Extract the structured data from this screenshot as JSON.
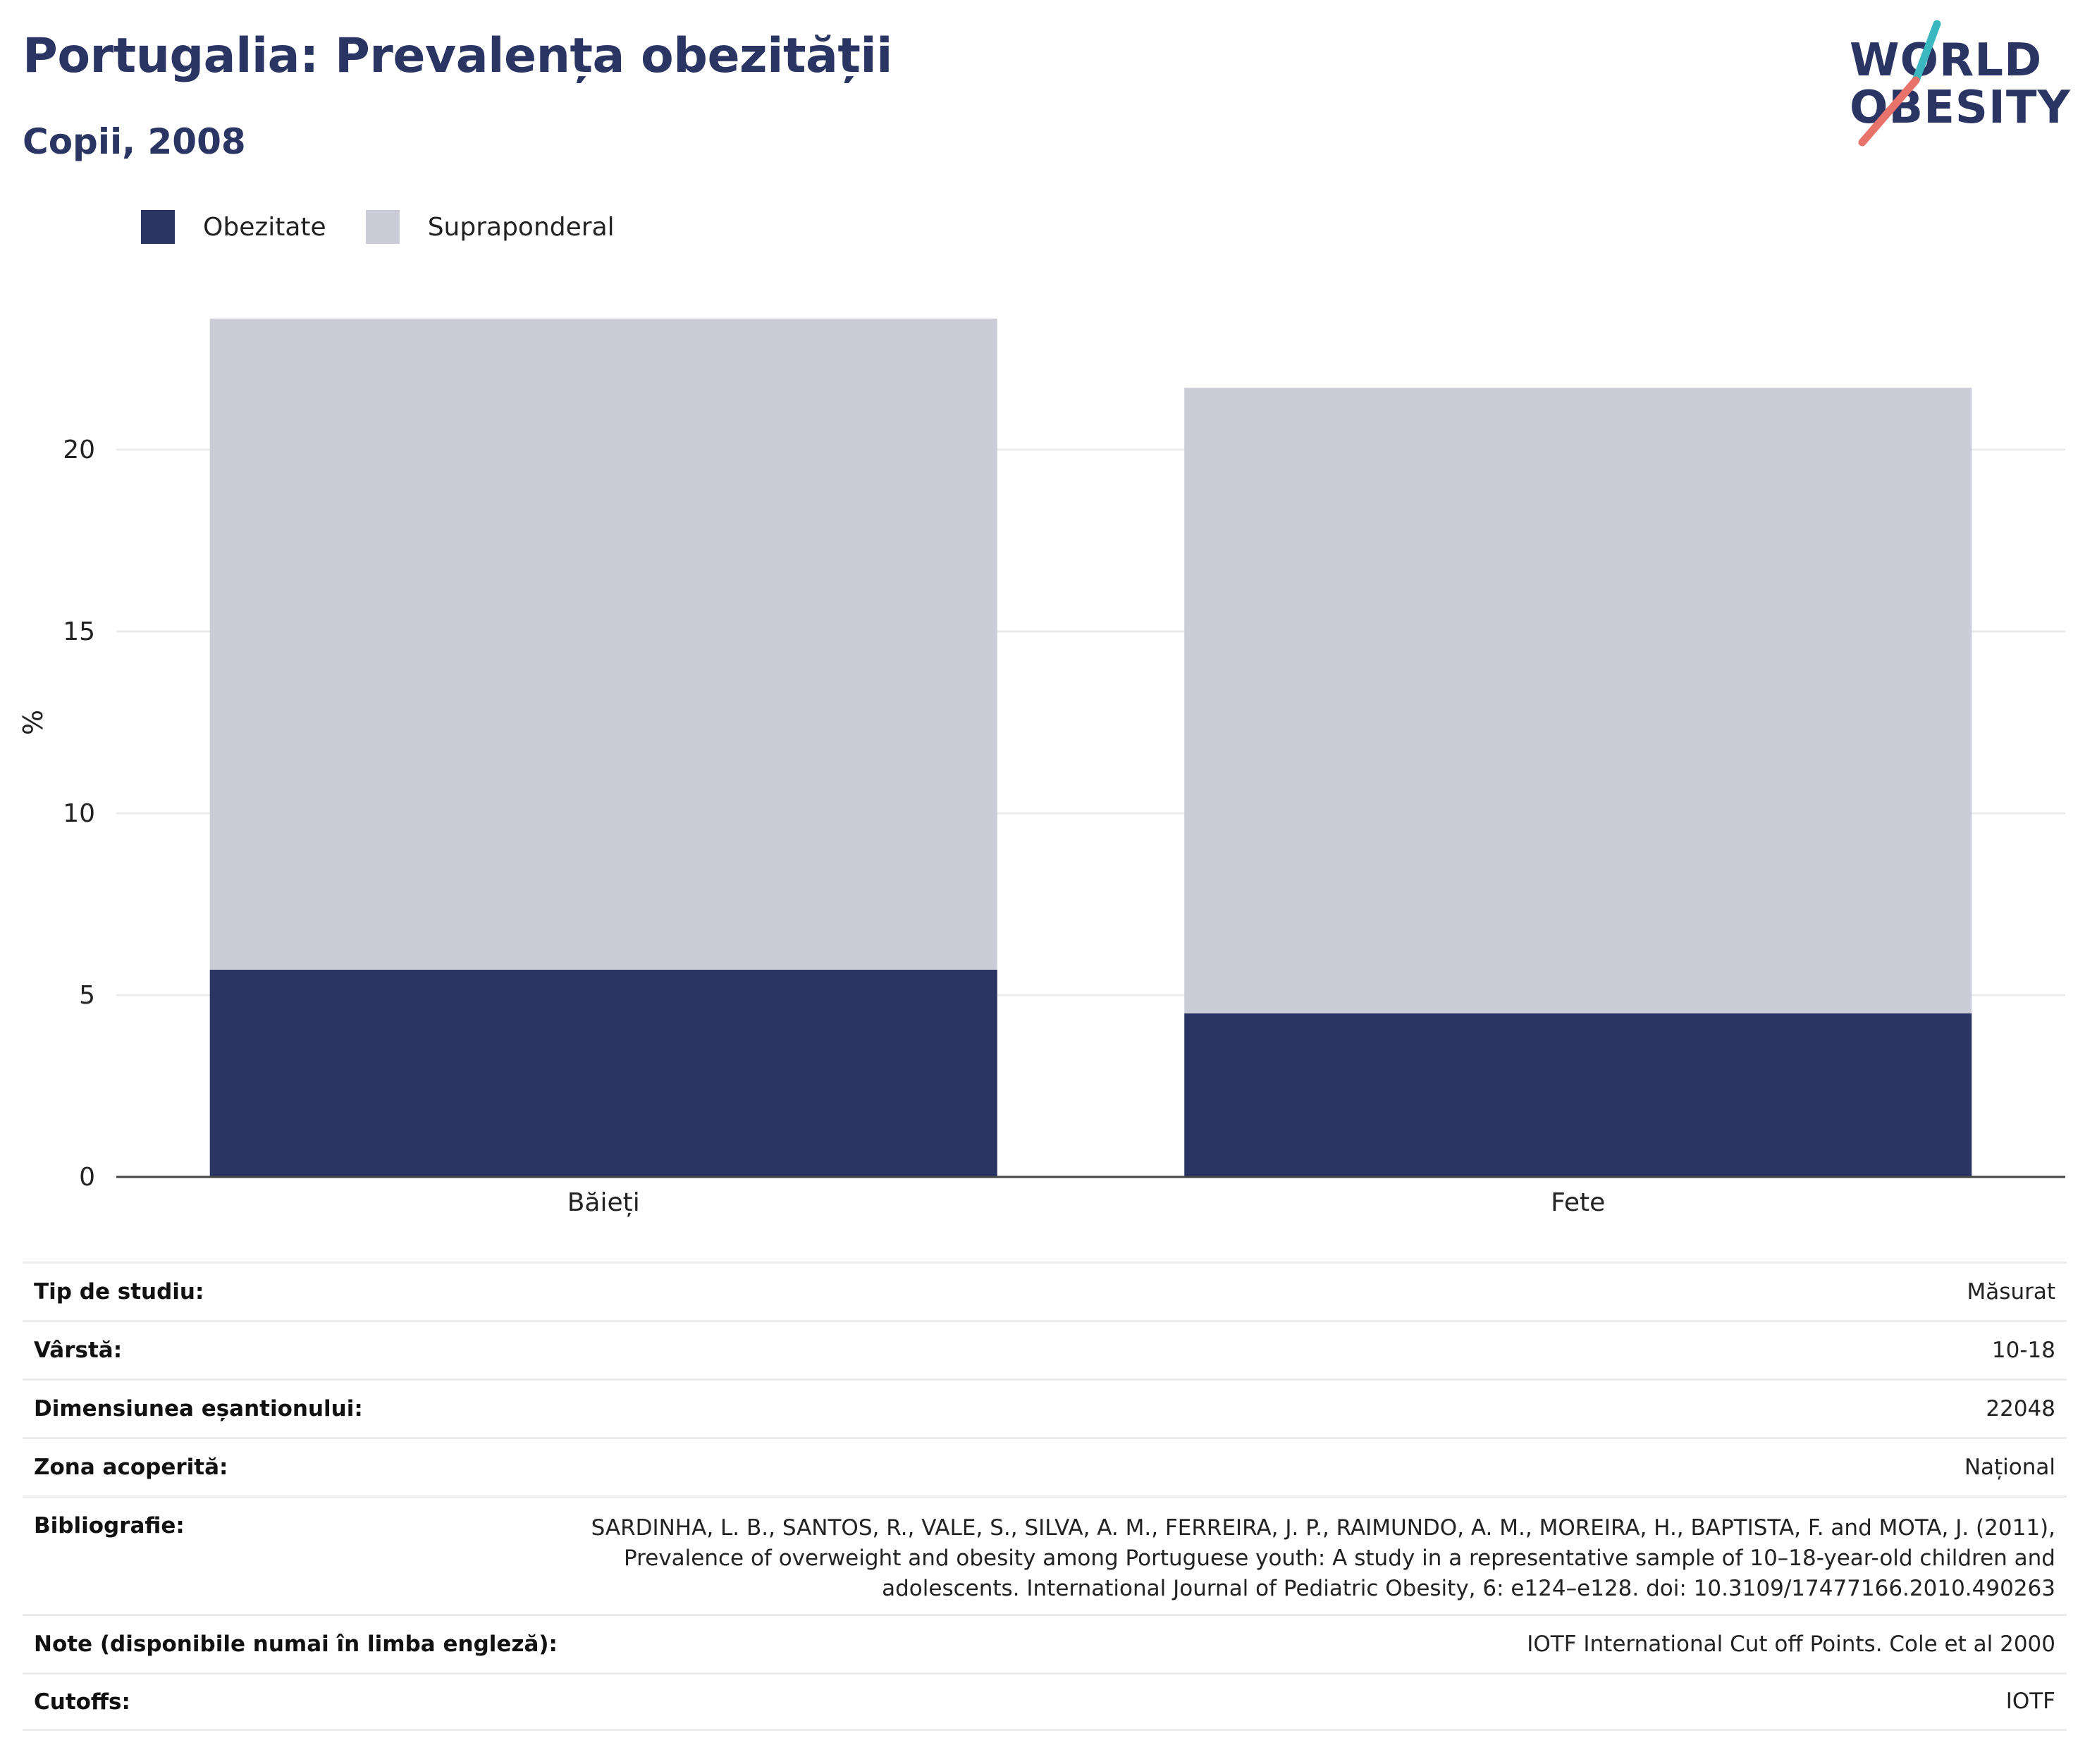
{
  "header": {
    "title": "Portugalia: Prevalența obezității",
    "subtitle": "Copii, 2008"
  },
  "logo": {
    "line1": "WORLD",
    "line2": "OBESITY",
    "accent_colors": [
      "#3bb7c0",
      "#e8736a"
    ]
  },
  "legend": [
    {
      "label": "Obezitate",
      "color": "#2a3563"
    },
    {
      "label": "Supraponderal",
      "color": "#cbccd8"
    }
  ],
  "chart_data": {
    "type": "bar",
    "stacked": true,
    "categories": [
      "Băieți",
      "Fete"
    ],
    "series": [
      {
        "name": "Obezitate",
        "values": [
          5.7,
          4.5
        ],
        "color": "#2a3563"
      },
      {
        "name": "Supraponderal",
        "values": [
          17.9,
          17.2
        ],
        "color": "#cbccd8"
      }
    ],
    "ylabel": "%",
    "ylim": [
      0,
      25
    ],
    "yticks": [
      0,
      5,
      10,
      15,
      20
    ],
    "grid": true
  },
  "info": {
    "study_type": {
      "label": "Tip de studiu:",
      "value": "Măsurat"
    },
    "age": {
      "label": "Vârstă:",
      "value": "10-18"
    },
    "sample_size": {
      "label": "Dimensiunea eșantionului:",
      "value": "22048"
    },
    "area": {
      "label": "Zona acoperită:",
      "value": "Național"
    },
    "bibliography": {
      "label": "Bibliografie:",
      "value": "SARDINHA, L. B., SANTOS, R., VALE, S., SILVA, A. M., FERREIRA, J. P., RAIMUNDO, A. M., MOREIRA, H., BAPTISTA, F. and MOTA, J. (2011), Prevalence of overweight and obesity among Portuguese youth: A study in a representative sample of 10–18-year-old children and adolescents. International Journal of Pediatric Obesity, 6: e124–e128. doi: 10.3109/17477166.2010.490263"
    },
    "notes": {
      "label": "Note (disponibile numai în limba engleză):",
      "value": "IOTF International Cut off Points. Cole et al 2000"
    },
    "cutoffs": {
      "label": "Cutoffs:",
      "value": "IOTF"
    }
  }
}
